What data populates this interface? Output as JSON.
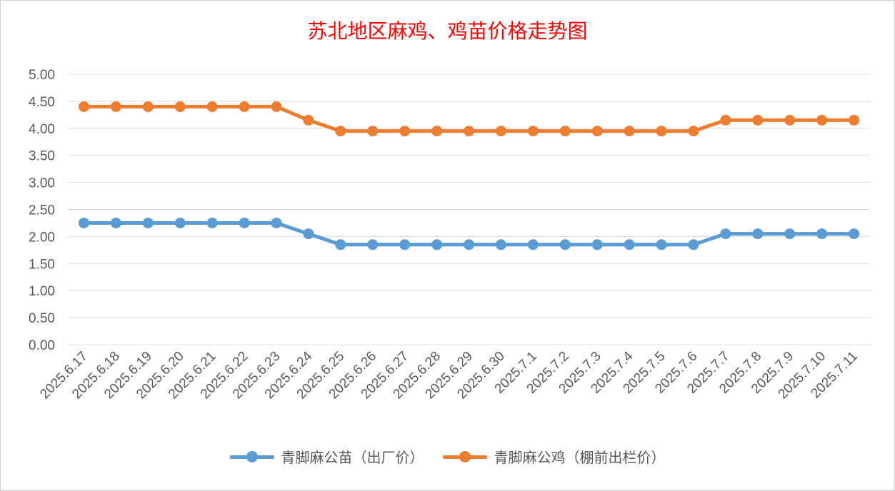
{
  "chart_data": {
    "type": "line",
    "title": "苏北地区麻鸡、鸡苗价格走势图",
    "categories": [
      "2025.6.17",
      "2025.6.18",
      "2025.6.19",
      "2025.6.20",
      "2025.6.21",
      "2025.6.22",
      "2025.6.23",
      "2025.6.24",
      "2025.6.25",
      "2025.6.26",
      "2025.6.27",
      "2025.6.28",
      "2025.6.29",
      "2025.6.30",
      "2025.7.1",
      "2025.7.2",
      "2025.7.3",
      "2025.7.4",
      "2025.7.5",
      "2025.7.6",
      "2025.7.7",
      "2025.7.8",
      "2025.7.9",
      "2025.7.10",
      "2025.7.11"
    ],
    "series": [
      {
        "name": "青脚麻公苗（出厂价）",
        "color": "#5b9bd5",
        "values": [
          2.25,
          2.25,
          2.25,
          2.25,
          2.25,
          2.25,
          2.25,
          2.05,
          1.85,
          1.85,
          1.85,
          1.85,
          1.85,
          1.85,
          1.85,
          1.85,
          1.85,
          1.85,
          1.85,
          1.85,
          2.05,
          2.05,
          2.05,
          2.05,
          2.05
        ]
      },
      {
        "name": "青脚麻公鸡（棚前出栏价）",
        "color": "#ed7d31",
        "values": [
          4.4,
          4.4,
          4.4,
          4.4,
          4.4,
          4.4,
          4.4,
          4.15,
          3.95,
          3.95,
          3.95,
          3.95,
          3.95,
          3.95,
          3.95,
          3.95,
          3.95,
          3.95,
          3.95,
          3.95,
          4.15,
          4.15,
          4.15,
          4.15,
          4.15
        ]
      }
    ],
    "ylim": [
      0,
      5
    ],
    "yticks": [
      "0.00",
      "0.50",
      "1.00",
      "1.50",
      "2.00",
      "2.50",
      "3.00",
      "3.50",
      "4.00",
      "4.50",
      "5.00"
    ],
    "grid": true,
    "legend_position": "bottom"
  }
}
